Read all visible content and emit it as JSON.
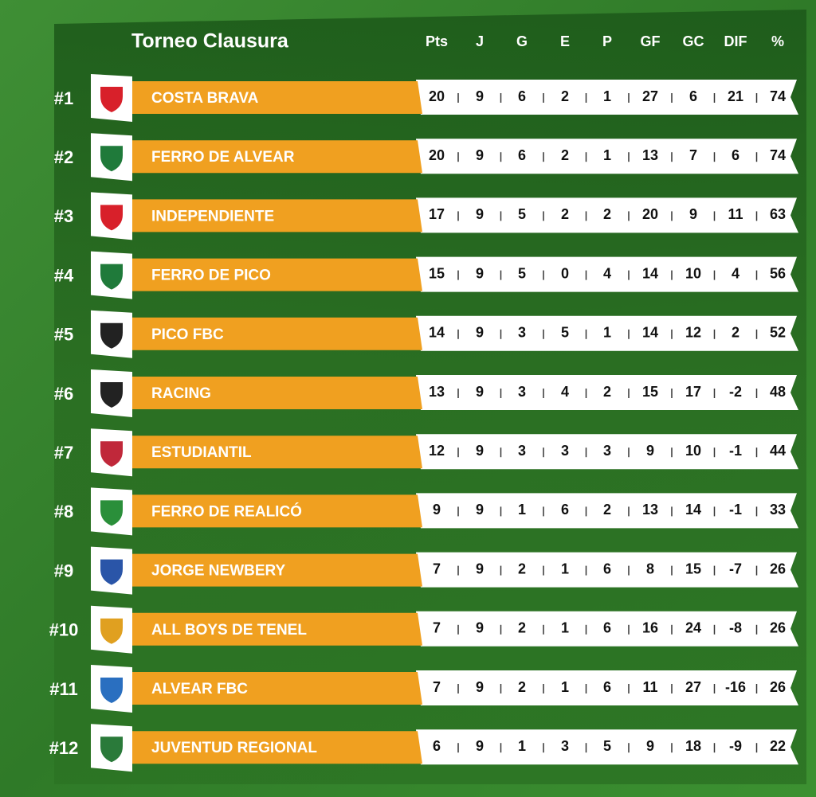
{
  "table": {
    "title": "Torneo Clausura",
    "columns": [
      "Pts",
      "J",
      "G",
      "E",
      "P",
      "GF",
      "GC",
      "DIF",
      "%"
    ],
    "rows": [
      {
        "rank": "#1",
        "team": "COSTA BRAVA",
        "stats": [
          20,
          9,
          6,
          2,
          1,
          27,
          6,
          21,
          74
        ]
      },
      {
        "rank": "#2",
        "team": "FERRO DE ALVEAR",
        "stats": [
          20,
          9,
          6,
          2,
          1,
          13,
          7,
          6,
          74
        ]
      },
      {
        "rank": "#3",
        "team": "INDEPENDIENTE",
        "stats": [
          17,
          9,
          5,
          2,
          2,
          20,
          9,
          11,
          63
        ]
      },
      {
        "rank": "#4",
        "team": "FERRO DE PICO",
        "stats": [
          15,
          9,
          5,
          0,
          4,
          14,
          10,
          4,
          56
        ]
      },
      {
        "rank": "#5",
        "team": "PICO FBC",
        "stats": [
          14,
          9,
          3,
          5,
          1,
          14,
          12,
          2,
          52
        ]
      },
      {
        "rank": "#6",
        "team": "RACING",
        "stats": [
          13,
          9,
          3,
          4,
          2,
          15,
          17,
          -2,
          48
        ]
      },
      {
        "rank": "#7",
        "team": "ESTUDIANTIL",
        "stats": [
          12,
          9,
          3,
          3,
          3,
          9,
          10,
          -1,
          44
        ]
      },
      {
        "rank": "#8",
        "team": "FERRO DE REALICÓ",
        "stats": [
          9,
          9,
          1,
          6,
          2,
          13,
          14,
          -1,
          33
        ]
      },
      {
        "rank": "#9",
        "team": "JORGE NEWBERY",
        "stats": [
          7,
          9,
          2,
          1,
          6,
          8,
          15,
          -7,
          26
        ]
      },
      {
        "rank": "#10",
        "team": "ALL BOYS DE TENEL",
        "stats": [
          7,
          9,
          2,
          1,
          6,
          16,
          24,
          -8,
          26
        ]
      },
      {
        "rank": "#11",
        "team": "ALVEAR FBC",
        "stats": [
          7,
          9,
          2,
          1,
          6,
          11,
          27,
          -16,
          26
        ]
      },
      {
        "rank": "#12",
        "team": "JUVENTUD REGIONAL",
        "stats": [
          6,
          9,
          1,
          3,
          5,
          9,
          18,
          -9,
          22
        ]
      }
    ]
  }
}
